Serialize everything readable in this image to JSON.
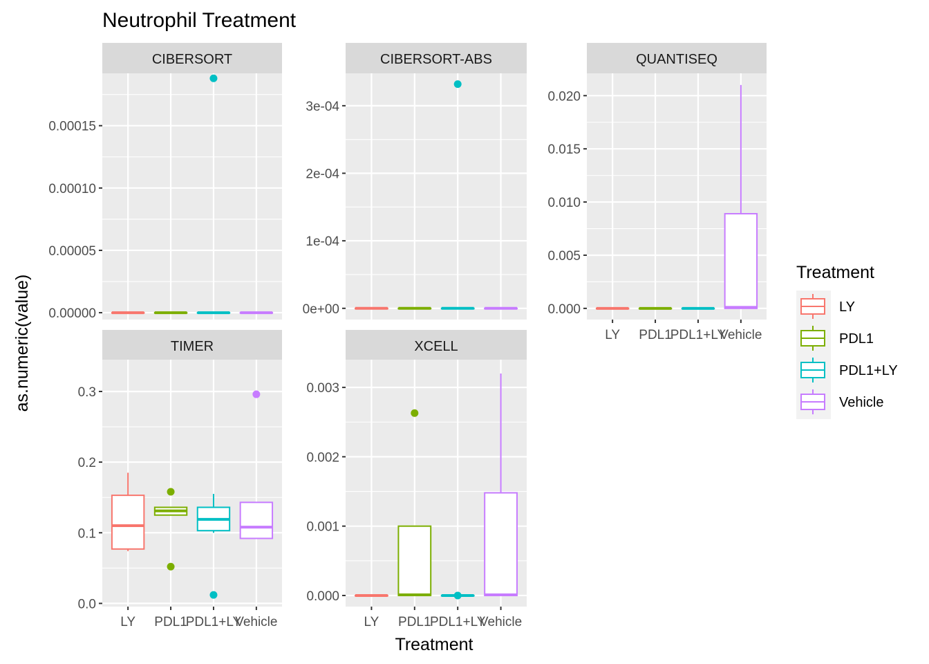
{
  "chart_data": {
    "type": "boxplot",
    "title": "Neutrophil Treatment",
    "xlabel": "Treatment",
    "ylabel": "as.numeric(value)",
    "categories": [
      "LY",
      "PDL1",
      "PDL1+LY",
      "Vehicle"
    ],
    "legend": {
      "title": "Treatment",
      "position": "right",
      "items": [
        "LY",
        "PDL1",
        "PDL1+LY",
        "Vehicle"
      ],
      "colors": [
        "#F8766D",
        "#7CAE00",
        "#00BFC4",
        "#C77CFF"
      ]
    },
    "facets": [
      {
        "name": "CIBERSORT",
        "ylim": [
          -5.5e-06,
          0.000192
        ],
        "ticks": [
          0,
          5e-05,
          0.0001,
          0.00015
        ],
        "tick_labels": [
          "0.00000",
          "0.00005",
          "0.00010",
          "0.00015"
        ],
        "boxes": [
          {
            "category": "LY",
            "min": 0,
            "q1": 0,
            "median": 0,
            "q3": 0,
            "max": 0,
            "outliers": []
          },
          {
            "category": "PDL1",
            "min": 0,
            "q1": 0,
            "median": 0,
            "q3": 0,
            "max": 0,
            "outliers": []
          },
          {
            "category": "PDL1+LY",
            "min": 0,
            "q1": 0,
            "median": 0,
            "q3": 0,
            "max": 0,
            "outliers": [
              0.000188
            ]
          },
          {
            "category": "Vehicle",
            "min": 0,
            "q1": 0,
            "median": 0,
            "q3": 0,
            "max": 0,
            "outliers": []
          }
        ]
      },
      {
        "name": "CIBERSORT-ABS",
        "ylim": [
          -1.66e-05,
          0.000348
        ],
        "ticks": [
          0,
          0.0001,
          0.0002,
          0.0003
        ],
        "tick_labels": [
          "0e+00",
          "1e-04",
          "2e-04",
          "3e-04"
        ],
        "boxes": [
          {
            "category": "LY",
            "min": 0,
            "q1": 0,
            "median": 0,
            "q3": 0,
            "max": 0,
            "outliers": []
          },
          {
            "category": "PDL1",
            "min": 0,
            "q1": 0,
            "median": 0,
            "q3": 0,
            "max": 0,
            "outliers": []
          },
          {
            "category": "PDL1+LY",
            "min": 0,
            "q1": 0,
            "median": 0,
            "q3": 0,
            "max": 0,
            "outliers": [
              0.000332
            ]
          },
          {
            "category": "Vehicle",
            "min": 0,
            "q1": 0,
            "median": 0,
            "q3": 0,
            "max": 0,
            "outliers": []
          }
        ]
      },
      {
        "name": "QUANTISEQ",
        "ylim": [
          -0.00105,
          0.0221
        ],
        "ticks": [
          0,
          0.005,
          0.01,
          0.015,
          0.02
        ],
        "tick_labels": [
          "0.000",
          "0.005",
          "0.010",
          "0.015",
          "0.020"
        ],
        "boxes": [
          {
            "category": "LY",
            "min": 0,
            "q1": 0,
            "median": 0,
            "q3": 0,
            "max": 0,
            "outliers": []
          },
          {
            "category": "PDL1",
            "min": 0,
            "q1": 0,
            "median": 0,
            "q3": 0,
            "max": 0,
            "outliers": []
          },
          {
            "category": "PDL1+LY",
            "min": 0,
            "q1": 0,
            "median": 0,
            "q3": 0,
            "max": 0,
            "outliers": []
          },
          {
            "category": "Vehicle",
            "min": 0,
            "q1": 0,
            "median": 0.0001,
            "q3": 0.0089,
            "max": 0.021,
            "outliers": []
          }
        ]
      },
      {
        "name": "TIMER",
        "ylim": [
          -0.0045,
          0.345
        ],
        "ticks": [
          0,
          0.1,
          0.2,
          0.3
        ],
        "tick_labels": [
          "0.0",
          "0.1",
          "0.2",
          "0.3"
        ],
        "boxes": [
          {
            "category": "LY",
            "min": 0.074,
            "q1": 0.077,
            "median": 0.11,
            "q3": 0.153,
            "max": 0.185,
            "outliers": []
          },
          {
            "category": "PDL1",
            "min": 0.125,
            "q1": 0.125,
            "median": 0.131,
            "q3": 0.136,
            "max": 0.137,
            "outliers": [
              0.158,
              0.052
            ]
          },
          {
            "category": "PDL1+LY",
            "min": 0.1,
            "q1": 0.103,
            "median": 0.119,
            "q3": 0.136,
            "max": 0.155,
            "outliers": [
              0.012
            ]
          },
          {
            "category": "Vehicle",
            "min": 0.092,
            "q1": 0.092,
            "median": 0.108,
            "q3": 0.143,
            "max": 0.143,
            "outliers": [
              0.296
            ]
          }
        ]
      },
      {
        "name": "XCELL",
        "ylim": [
          -0.00016,
          0.0034
        ],
        "ticks": [
          0,
          0.001,
          0.002,
          0.003
        ],
        "tick_labels": [
          "0.000",
          "0.001",
          "0.002",
          "0.003"
        ],
        "boxes": [
          {
            "category": "LY",
            "min": 0,
            "q1": 0,
            "median": 0,
            "q3": 0,
            "max": 0,
            "outliers": []
          },
          {
            "category": "PDL1",
            "min": 0,
            "q1": 0,
            "median": 1e-05,
            "q3": 0.001,
            "max": 0.001,
            "outliers": [
              0.00263
            ]
          },
          {
            "category": "PDL1+LY",
            "min": 0,
            "q1": 0,
            "median": 0,
            "q3": 0,
            "max": 0,
            "outliers": [
              0
            ]
          },
          {
            "category": "Vehicle",
            "min": 0,
            "q1": 0,
            "median": 1e-05,
            "q3": 0.00148,
            "max": 0.0032,
            "outliers": []
          }
        ]
      }
    ]
  }
}
